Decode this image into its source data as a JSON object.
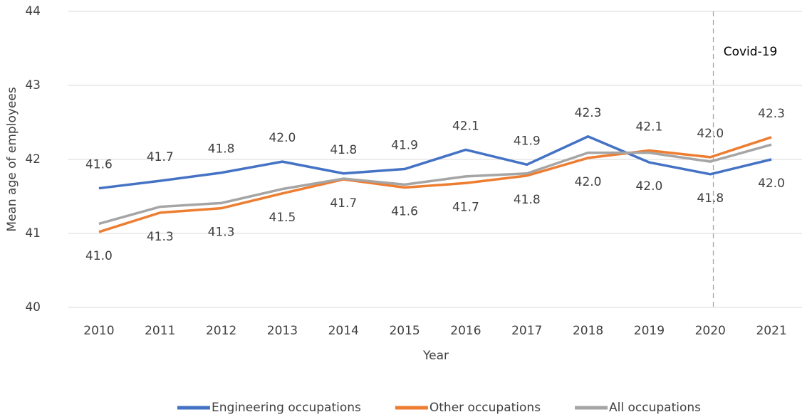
{
  "chart_data": {
    "type": "line",
    "x_label": "Year",
    "y_label": "Mean age of employees",
    "categories": [
      "2010",
      "2011",
      "2012",
      "2013",
      "2014",
      "2015",
      "2016",
      "2017",
      "2018",
      "2019",
      "2020",
      "2021"
    ],
    "series": [
      {
        "name": "Engineering occupations",
        "color": "#4472c4",
        "values": [
          41.61,
          41.71,
          41.82,
          41.97,
          41.81,
          41.87,
          42.13,
          41.93,
          42.31,
          41.96,
          41.8,
          42.0
        ],
        "value_labels": [
          "41.6",
          "41.7",
          "41.8",
          "42.0",
          "41.8",
          "41.9",
          "42.1",
          "41.9",
          "42.3",
          "42.0",
          "41.8",
          "42.0"
        ]
      },
      {
        "name": "Other occupations",
        "color": "#ed7d31",
        "values": [
          41.02,
          41.28,
          41.34,
          41.54,
          41.73,
          41.62,
          41.68,
          41.78,
          42.02,
          42.12,
          42.03,
          42.3
        ],
        "value_labels": [
          "41.0",
          "41.3",
          "41.3",
          "41.5",
          "41.7",
          "41.6",
          "41.7",
          "41.8",
          "42.0",
          "42.1",
          "42.0",
          "42.3"
        ]
      },
      {
        "name": "All occupations",
        "color": "#a5a5a5",
        "values": [
          41.13,
          41.36,
          41.41,
          41.6,
          41.74,
          41.66,
          41.77,
          41.81,
          42.09,
          42.09,
          41.97,
          42.2
        ]
      }
    ],
    "ylim": [
      40,
      44
    ],
    "yticks": [
      40,
      41,
      42,
      43,
      44
    ],
    "grid": true,
    "annotation": {
      "text": "Covid-19",
      "x": "2020"
    },
    "legend": "bottom"
  }
}
